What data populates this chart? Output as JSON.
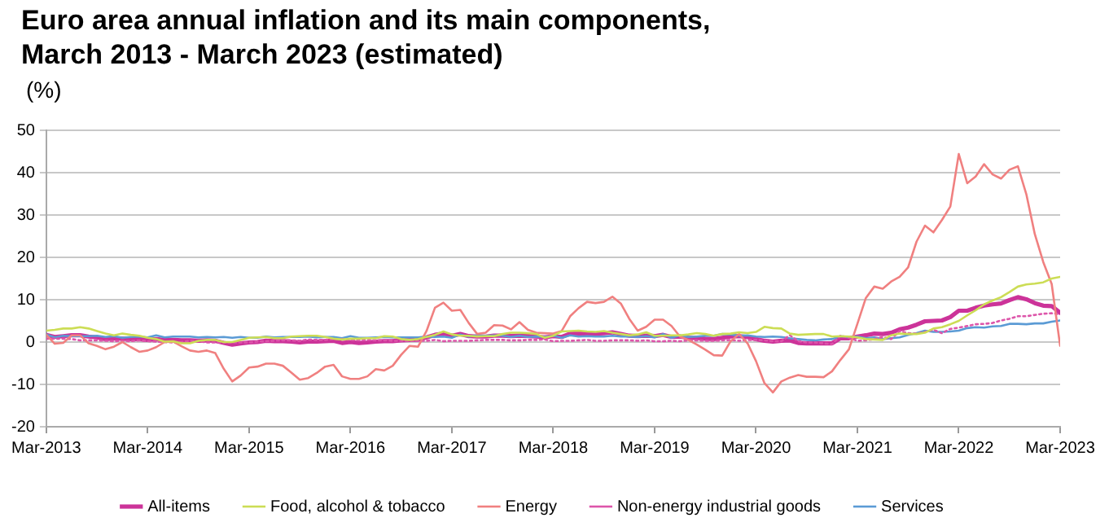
{
  "chart_data": {
    "type": "line",
    "title": "Euro area annual inflation and its main components, March 2013 - March 2023 (estimated)",
    "ylabel": "(%)",
    "x": [
      "2013-03",
      "2013-04",
      "2013-05",
      "2013-06",
      "2013-07",
      "2013-08",
      "2013-09",
      "2013-10",
      "2013-11",
      "2013-12",
      "2014-01",
      "2014-02",
      "2014-03",
      "2014-04",
      "2014-05",
      "2014-06",
      "2014-07",
      "2014-08",
      "2014-09",
      "2014-10",
      "2014-11",
      "2014-12",
      "2015-01",
      "2015-02",
      "2015-03",
      "2015-04",
      "2015-05",
      "2015-06",
      "2015-07",
      "2015-08",
      "2015-09",
      "2015-10",
      "2015-11",
      "2015-12",
      "2016-01",
      "2016-02",
      "2016-03",
      "2016-04",
      "2016-05",
      "2016-06",
      "2016-07",
      "2016-08",
      "2016-09",
      "2016-10",
      "2016-11",
      "2016-12",
      "2017-01",
      "2017-02",
      "2017-03",
      "2017-04",
      "2017-05",
      "2017-06",
      "2017-07",
      "2017-08",
      "2017-09",
      "2017-10",
      "2017-11",
      "2017-12",
      "2018-01",
      "2018-02",
      "2018-03",
      "2018-04",
      "2018-05",
      "2018-06",
      "2018-07",
      "2018-08",
      "2018-09",
      "2018-10",
      "2018-11",
      "2018-12",
      "2019-01",
      "2019-02",
      "2019-03",
      "2019-04",
      "2019-05",
      "2019-06",
      "2019-07",
      "2019-08",
      "2019-09",
      "2019-10",
      "2019-11",
      "2019-12",
      "2020-01",
      "2020-02",
      "2020-03",
      "2020-04",
      "2020-05",
      "2020-06",
      "2020-07",
      "2020-08",
      "2020-09",
      "2020-10",
      "2020-11",
      "2020-12",
      "2021-01",
      "2021-02",
      "2021-03",
      "2021-04",
      "2021-05",
      "2021-06",
      "2021-07",
      "2021-08",
      "2021-09",
      "2021-10",
      "2021-11",
      "2021-12",
      "2022-01",
      "2022-02",
      "2022-03",
      "2022-04",
      "2022-05",
      "2022-06",
      "2022-07",
      "2022-08",
      "2022-09",
      "2022-10",
      "2022-11",
      "2022-12",
      "2023-01",
      "2023-02",
      "2023-03"
    ],
    "series": [
      {
        "name": "All-items",
        "color": "#cc3399",
        "values": [
          1.7,
          1.2,
          1.4,
          1.6,
          1.6,
          1.3,
          1.1,
          0.7,
          0.9,
          0.8,
          0.7,
          0.7,
          0.5,
          0.7,
          0.5,
          0.5,
          0.4,
          0.4,
          0.3,
          0.4,
          0.3,
          -0.2,
          -0.6,
          -0.3,
          -0.1,
          0.0,
          0.3,
          0.2,
          0.2,
          0.1,
          -0.1,
          0.1,
          0.1,
          0.2,
          0.3,
          -0.2,
          0.0,
          -0.2,
          -0.1,
          0.1,
          0.2,
          0.2,
          0.4,
          0.5,
          0.6,
          1.1,
          1.7,
          2.0,
          1.5,
          1.9,
          1.4,
          1.3,
          1.3,
          1.5,
          1.5,
          1.4,
          1.5,
          1.4,
          1.3,
          1.1,
          1.4,
          1.2,
          2.0,
          2.0,
          2.1,
          2.0,
          2.1,
          2.3,
          1.9,
          1.5,
          1.4,
          1.5,
          1.4,
          1.7,
          1.2,
          1.3,
          1.0,
          1.0,
          0.8,
          0.7,
          1.0,
          1.3,
          1.4,
          1.2,
          0.7,
          0.3,
          0.1,
          0.3,
          0.4,
          -0.2,
          -0.3,
          -0.3,
          -0.3,
          -0.3,
          0.9,
          0.9,
          1.3,
          1.6,
          2.0,
          1.9,
          2.2,
          3.0,
          3.4,
          4.1,
          4.9,
          5.0,
          5.1,
          5.9,
          7.4,
          7.4,
          8.1,
          8.6,
          8.9,
          9.1,
          9.9,
          10.6,
          10.1,
          9.2,
          8.6,
          8.5,
          6.9
        ]
      },
      {
        "name": "Food, alcohol & tobacco",
        "color": "#ccdd55",
        "values": [
          2.7,
          2.9,
          3.2,
          3.2,
          3.5,
          3.2,
          2.6,
          2.0,
          1.6,
          2.0,
          1.7,
          1.5,
          1.0,
          0.7,
          0.1,
          0.2,
          -0.3,
          -0.3,
          0.3,
          0.5,
          0.5,
          0.0,
          0.0,
          0.5,
          1.0,
          1.1,
          1.2,
          0.9,
          0.9,
          1.3,
          1.4,
          1.5,
          1.5,
          1.2,
          0.8,
          0.6,
          0.8,
          0.8,
          0.9,
          0.9,
          1.4,
          1.3,
          0.7,
          0.5,
          0.7,
          1.2,
          1.7,
          2.5,
          1.8,
          1.5,
          1.5,
          1.3,
          1.4,
          1.4,
          1.9,
          2.2,
          2.2,
          2.1,
          1.9,
          1.0,
          1.5,
          2.5,
          2.6,
          2.7,
          2.5,
          2.4,
          2.6,
          2.2,
          1.9,
          1.6,
          1.8,
          2.3,
          1.5,
          1.5,
          1.6,
          1.6,
          1.8,
          2.1,
          1.9,
          1.5,
          1.9,
          2.0,
          2.3,
          2.1,
          2.4,
          3.6,
          3.3,
          3.2,
          2.0,
          1.7,
          1.8,
          1.9,
          1.9,
          1.3,
          1.4,
          1.3,
          1.1,
          0.7,
          0.6,
          0.5,
          1.6,
          2.0,
          1.9,
          1.9,
          2.2,
          3.2,
          3.5,
          4.2,
          5.0,
          6.3,
          7.5,
          8.9,
          9.8,
          10.6,
          11.8,
          13.1,
          13.6,
          13.8,
          14.1,
          15.0,
          15.4
        ]
      },
      {
        "name": "Energy",
        "color": "#f08080",
        "values": [
          1.7,
          -0.4,
          -0.2,
          1.6,
          1.6,
          -0.3,
          -0.9,
          -1.7,
          -1.1,
          0.0,
          -1.2,
          -2.3,
          -2.0,
          -1.2,
          0.0,
          0.1,
          -1.0,
          -2.0,
          -2.3,
          -2.0,
          -2.6,
          -6.3,
          -9.3,
          -7.9,
          -6.0,
          -5.8,
          -5.1,
          -5.1,
          -5.6,
          -7.2,
          -8.9,
          -8.5,
          -7.3,
          -5.8,
          -5.4,
          -8.1,
          -8.7,
          -8.7,
          -8.1,
          -6.4,
          -6.7,
          -5.6,
          -3.0,
          -0.9,
          -1.1,
          2.6,
          8.1,
          9.3,
          7.4,
          7.6,
          4.5,
          1.9,
          2.2,
          4.0,
          3.9,
          3.0,
          4.7,
          2.9,
          2.2,
          2.1,
          2.0,
          2.6,
          6.1,
          8.0,
          9.5,
          9.2,
          9.5,
          10.7,
          9.1,
          5.5,
          2.7,
          3.6,
          5.3,
          5.3,
          3.8,
          1.3,
          0.5,
          -0.6,
          -1.8,
          -3.1,
          -3.2,
          0.2,
          1.9,
          -0.3,
          -4.5,
          -9.7,
          -11.9,
          -9.3,
          -8.4,
          -7.8,
          -8.2,
          -8.2,
          -8.3,
          -6.9,
          -4.2,
          -1.7,
          4.3,
          10.4,
          13.1,
          12.6,
          14.3,
          15.4,
          17.6,
          23.7,
          27.5,
          25.9,
          28.8,
          32.0,
          44.4,
          37.5,
          39.1,
          42.0,
          39.6,
          38.6,
          40.7,
          41.5,
          34.9,
          25.5,
          18.9,
          13.7,
          -0.9
        ]
      },
      {
        "name": "Non-energy industrial goods",
        "color": "#dd55aa",
        "line_style": "dotted",
        "values": [
          0.8,
          0.8,
          0.8,
          0.7,
          0.4,
          0.4,
          0.4,
          0.3,
          0.2,
          0.3,
          0.2,
          0.4,
          0.2,
          0.1,
          0.0,
          -0.1,
          0.0,
          0.3,
          0.2,
          -0.1,
          -0.1,
          -0.1,
          -0.1,
          -0.1,
          -0.1,
          0.1,
          0.2,
          0.3,
          0.4,
          0.4,
          0.3,
          0.6,
          0.5,
          0.5,
          0.7,
          0.7,
          0.5,
          0.5,
          0.5,
          0.4,
          0.4,
          0.3,
          0.3,
          0.3,
          0.3,
          0.3,
          0.5,
          0.2,
          0.3,
          0.3,
          0.3,
          0.4,
          0.5,
          0.5,
          0.5,
          0.4,
          0.4,
          0.5,
          0.5,
          0.6,
          0.2,
          0.3,
          0.3,
          0.4,
          0.5,
          0.3,
          0.3,
          0.4,
          0.4,
          0.4,
          0.3,
          0.4,
          0.2,
          0.2,
          0.3,
          0.2,
          0.4,
          0.4,
          0.3,
          0.3,
          0.4,
          0.5,
          0.3,
          0.5,
          0.5,
          0.4,
          0.2,
          0.2,
          1.6,
          0.2,
          -0.1,
          -0.1,
          -0.3,
          -0.5,
          1.5,
          1.0,
          0.3,
          0.4,
          0.7,
          1.2,
          0.7,
          2.6,
          2.1,
          2.0,
          2.4,
          2.9,
          2.1,
          3.1,
          3.4,
          3.8,
          4.2,
          4.3,
          4.5,
          5.1,
          5.5,
          6.1,
          6.1,
          6.4,
          6.7,
          6.8,
          6.6
        ]
      },
      {
        "name": "Services",
        "color": "#5b9bd5",
        "values": [
          1.8,
          1.1,
          1.5,
          1.4,
          1.4,
          1.4,
          1.5,
          1.2,
          1.4,
          1.0,
          1.2,
          1.3,
          1.1,
          1.6,
          1.1,
          1.3,
          1.3,
          1.3,
          1.1,
          1.2,
          1.1,
          1.2,
          1.0,
          1.2,
          1.0,
          1.0,
          1.3,
          1.1,
          1.2,
          1.2,
          1.2,
          1.3,
          1.1,
          1.2,
          1.2,
          0.9,
          1.4,
          1.0,
          1.0,
          1.1,
          1.2,
          1.1,
          1.1,
          1.1,
          1.1,
          1.3,
          1.2,
          1.3,
          1.0,
          1.8,
          1.3,
          1.6,
          1.5,
          1.6,
          1.5,
          1.2,
          1.5,
          1.2,
          1.3,
          1.2,
          1.5,
          1.0,
          1.6,
          1.3,
          1.4,
          1.3,
          1.3,
          1.5,
          1.3,
          1.3,
          1.2,
          1.4,
          1.1,
          1.9,
          1.0,
          1.6,
          1.2,
          1.3,
          1.5,
          1.5,
          1.9,
          1.8,
          1.5,
          1.6,
          1.3,
          1.2,
          1.3,
          1.2,
          0.9,
          0.7,
          0.5,
          0.4,
          0.6,
          0.7,
          1.4,
          1.1,
          1.3,
          0.9,
          1.1,
          0.7,
          0.9,
          1.1,
          1.7,
          2.1,
          2.7,
          2.4,
          2.4,
          2.5,
          2.7,
          3.3,
          3.5,
          3.4,
          3.7,
          3.8,
          4.3,
          4.3,
          4.2,
          4.4,
          4.4,
          4.8,
          5.1
        ]
      }
    ],
    "xlim": [
      "2013-03",
      "2023-03"
    ],
    "xticks": [
      {
        "value": "2013-03",
        "label": "Mar-2013"
      },
      {
        "value": "2014-03",
        "label": "Mar-2014"
      },
      {
        "value": "2015-03",
        "label": "Mar-2015"
      },
      {
        "value": "2016-03",
        "label": "Mar-2016"
      },
      {
        "value": "2017-03",
        "label": "Mar-2017"
      },
      {
        "value": "2018-03",
        "label": "Mar-2018"
      },
      {
        "value": "2019-03",
        "label": "Mar-2019"
      },
      {
        "value": "2020-03",
        "label": "Mar-2020"
      },
      {
        "value": "2021-03",
        "label": "Mar-2021"
      },
      {
        "value": "2022-03",
        "label": "Mar-2022"
      },
      {
        "value": "2023-03",
        "label": "Mar-2023"
      }
    ],
    "ylim": [
      -20,
      50
    ],
    "yticks": [
      -20,
      -10,
      0,
      10,
      20,
      30,
      40,
      50
    ],
    "grid": "y",
    "legend": "bottom",
    "marker": "none",
    "line_style": "solid"
  }
}
